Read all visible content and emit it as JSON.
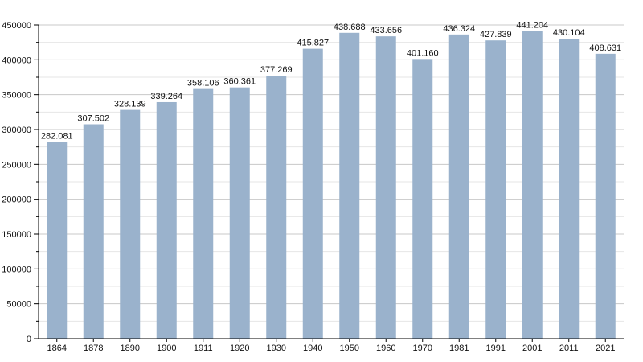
{
  "chart_data": {
    "type": "bar",
    "title": "",
    "xlabel": "",
    "ylabel": "",
    "categories": [
      "1864",
      "1878",
      "1890",
      "1900",
      "1911",
      "1920",
      "1930",
      "1940",
      "1950",
      "1960",
      "1970",
      "1981",
      "1991",
      "2001",
      "2011",
      "2021"
    ],
    "values": [
      282081,
      307502,
      328139,
      339264,
      358106,
      360361,
      377269,
      415827,
      438688,
      433656,
      401160,
      436324,
      427839,
      441204,
      430104,
      408631
    ],
    "value_labels": [
      "282.081",
      "307.502",
      "328.139",
      "339.264",
      "358.106",
      "360.361",
      "377.269",
      "415.827",
      "438.688",
      "433.656",
      "401.160",
      "436.324",
      "427.839",
      "441.204",
      "430.104",
      "408.631"
    ],
    "ylim": [
      0,
      450000
    ],
    "yticks": [
      0,
      50000,
      100000,
      150000,
      200000,
      250000,
      300000,
      350000,
      400000,
      450000
    ],
    "ytick_labels": [
      "0",
      "50000",
      "100000",
      "150000",
      "200000",
      "250000",
      "300000",
      "350000",
      "400000",
      "450000"
    ],
    "grid": true,
    "legend": "none",
    "bar_color": "#9ab2cc"
  }
}
